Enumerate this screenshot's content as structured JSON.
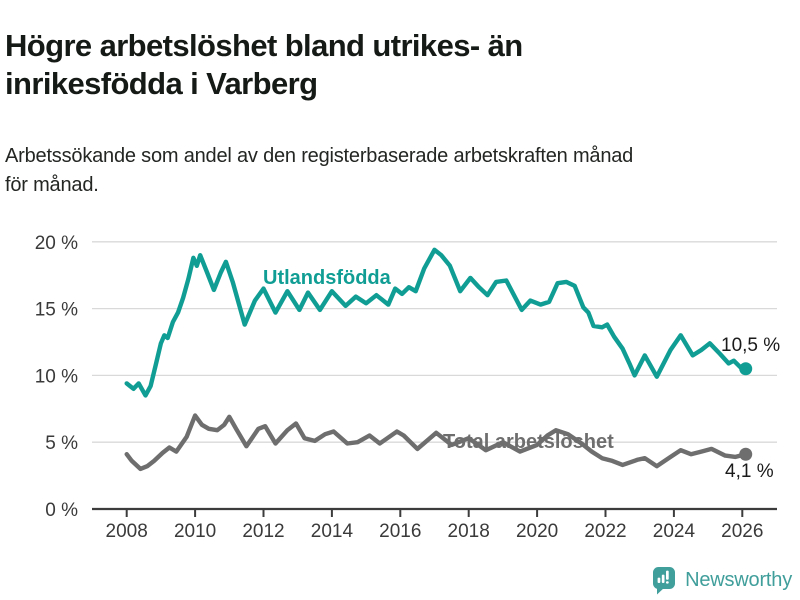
{
  "header": {
    "title_line1": "Högre arbetslöshet bland utrikes- än",
    "title_line2": "inrikesfödda i Varberg",
    "subtitle_line1": "Arbetssökande som andel av den registerbaserade arbetskraften månad",
    "subtitle_line2": "för månad."
  },
  "chart_data": {
    "type": "line",
    "title": "Högre arbetslöshet bland utrikes- än inrikesfödda i Varberg",
    "subtitle": "Arbetssökande som andel av den registerbaserade arbetskraften månad för månad.",
    "unit": "%",
    "ylim": [
      0,
      20
    ],
    "xlim": [
      2007.9,
      2026.9
    ],
    "y_ticks": [
      0,
      5,
      10,
      15,
      20
    ],
    "y_tick_labels": [
      "0 %",
      "5 %",
      "10 %",
      "15 %",
      "20 %"
    ],
    "x_ticks": [
      2008,
      2010,
      2012,
      2014,
      2016,
      2018,
      2020,
      2022,
      2024,
      2026
    ],
    "grid": true,
    "legend_position": "inline-labels",
    "colors": {
      "accent_teal": "#109e94",
      "line_gray": "#6e6e6e",
      "gridline": "#d9d9d9",
      "axis": "#3c3c3c",
      "tick_text": "#3a3a3a"
    },
    "series": [
      {
        "name": "Utlandsfödda",
        "color": "#109e94",
        "end_label": "10,5 %",
        "end_value": 10.5,
        "points": [
          [
            2008.0,
            9.4
          ],
          [
            2008.2,
            9.0
          ],
          [
            2008.35,
            9.4
          ],
          [
            2008.55,
            8.5
          ],
          [
            2008.7,
            9.2
          ],
          [
            2008.85,
            10.8
          ],
          [
            2009.0,
            12.4
          ],
          [
            2009.1,
            13.0
          ],
          [
            2009.2,
            12.8
          ],
          [
            2009.35,
            14.0
          ],
          [
            2009.5,
            14.7
          ],
          [
            2009.65,
            15.8
          ],
          [
            2009.8,
            17.2
          ],
          [
            2009.95,
            18.8
          ],
          [
            2010.05,
            18.2
          ],
          [
            2010.15,
            19.0
          ],
          [
            2010.35,
            17.7
          ],
          [
            2010.55,
            16.4
          ],
          [
            2010.75,
            17.7
          ],
          [
            2010.9,
            18.5
          ],
          [
            2011.1,
            17.0
          ],
          [
            2011.45,
            13.8
          ],
          [
            2011.75,
            15.6
          ],
          [
            2012.0,
            16.5
          ],
          [
            2012.35,
            14.7
          ],
          [
            2012.7,
            16.3
          ],
          [
            2013.05,
            14.9
          ],
          [
            2013.3,
            16.2
          ],
          [
            2013.65,
            14.9
          ],
          [
            2014.0,
            16.3
          ],
          [
            2014.4,
            15.2
          ],
          [
            2014.7,
            15.9
          ],
          [
            2015.0,
            15.4
          ],
          [
            2015.3,
            16.0
          ],
          [
            2015.65,
            15.3
          ],
          [
            2015.85,
            16.5
          ],
          [
            2016.05,
            16.1
          ],
          [
            2016.25,
            16.6
          ],
          [
            2016.45,
            16.3
          ],
          [
            2016.7,
            18.0
          ],
          [
            2017.0,
            19.4
          ],
          [
            2017.2,
            19.0
          ],
          [
            2017.45,
            18.2
          ],
          [
            2017.75,
            16.3
          ],
          [
            2018.05,
            17.3
          ],
          [
            2018.3,
            16.6
          ],
          [
            2018.55,
            16.0
          ],
          [
            2018.8,
            17.0
          ],
          [
            2019.1,
            17.1
          ],
          [
            2019.55,
            14.9
          ],
          [
            2019.8,
            15.6
          ],
          [
            2020.1,
            15.3
          ],
          [
            2020.35,
            15.5
          ],
          [
            2020.6,
            16.9
          ],
          [
            2020.85,
            17.0
          ],
          [
            2021.1,
            16.7
          ],
          [
            2021.35,
            15.1
          ],
          [
            2021.5,
            14.7
          ],
          [
            2021.65,
            13.7
          ],
          [
            2021.9,
            13.6
          ],
          [
            2022.05,
            13.8
          ],
          [
            2022.25,
            12.9
          ],
          [
            2022.5,
            12.0
          ],
          [
            2022.7,
            10.9
          ],
          [
            2022.85,
            10.0
          ],
          [
            2023.15,
            11.5
          ],
          [
            2023.5,
            9.9
          ],
          [
            2023.9,
            11.9
          ],
          [
            2024.2,
            13.0
          ],
          [
            2024.55,
            11.5
          ],
          [
            2024.8,
            11.9
          ],
          [
            2025.05,
            12.4
          ],
          [
            2025.35,
            11.6
          ],
          [
            2025.6,
            10.9
          ],
          [
            2025.75,
            11.1
          ],
          [
            2025.95,
            10.6
          ],
          [
            2026.1,
            10.5
          ]
        ]
      },
      {
        "name": "Total arbetslöshet",
        "color": "#6e6e6e",
        "end_label": "4,1 %",
        "end_value": 4.1,
        "points": [
          [
            2008.0,
            4.1
          ],
          [
            2008.15,
            3.6
          ],
          [
            2008.4,
            3.0
          ],
          [
            2008.6,
            3.2
          ],
          [
            2008.8,
            3.6
          ],
          [
            2009.05,
            4.2
          ],
          [
            2009.25,
            4.6
          ],
          [
            2009.45,
            4.3
          ],
          [
            2009.75,
            5.4
          ],
          [
            2010.0,
            7.0
          ],
          [
            2010.2,
            6.3
          ],
          [
            2010.4,
            6.0
          ],
          [
            2010.65,
            5.9
          ],
          [
            2010.85,
            6.3
          ],
          [
            2011.0,
            6.9
          ],
          [
            2011.2,
            6.0
          ],
          [
            2011.5,
            4.7
          ],
          [
            2011.85,
            6.0
          ],
          [
            2012.05,
            6.2
          ],
          [
            2012.35,
            4.9
          ],
          [
            2012.7,
            5.9
          ],
          [
            2012.95,
            6.4
          ],
          [
            2013.2,
            5.3
          ],
          [
            2013.5,
            5.1
          ],
          [
            2013.8,
            5.6
          ],
          [
            2014.05,
            5.8
          ],
          [
            2014.45,
            4.9
          ],
          [
            2014.75,
            5.0
          ],
          [
            2015.1,
            5.5
          ],
          [
            2015.4,
            4.9
          ],
          [
            2015.9,
            5.8
          ],
          [
            2016.1,
            5.5
          ],
          [
            2016.5,
            4.5
          ],
          [
            2017.05,
            5.7
          ],
          [
            2017.5,
            4.8
          ],
          [
            2018.0,
            5.3
          ],
          [
            2018.5,
            4.4
          ],
          [
            2019.0,
            5.0
          ],
          [
            2019.5,
            4.3
          ],
          [
            2020.0,
            4.8
          ],
          [
            2020.3,
            5.5
          ],
          [
            2020.55,
            5.9
          ],
          [
            2020.9,
            5.6
          ],
          [
            2021.3,
            4.9
          ],
          [
            2021.6,
            4.3
          ],
          [
            2021.9,
            3.8
          ],
          [
            2022.2,
            3.6
          ],
          [
            2022.5,
            3.3
          ],
          [
            2022.95,
            3.7
          ],
          [
            2023.15,
            3.8
          ],
          [
            2023.5,
            3.2
          ],
          [
            2023.9,
            3.9
          ],
          [
            2024.2,
            4.4
          ],
          [
            2024.5,
            4.1
          ],
          [
            2024.8,
            4.3
          ],
          [
            2025.1,
            4.5
          ],
          [
            2025.5,
            4.0
          ],
          [
            2025.8,
            3.9
          ],
          [
            2026.1,
            4.1
          ]
        ]
      }
    ]
  },
  "footer": {
    "brand": "Newsworthy",
    "brand_color": "#409e9b",
    "logo_icon": "bar-chart-speech-bubble"
  }
}
